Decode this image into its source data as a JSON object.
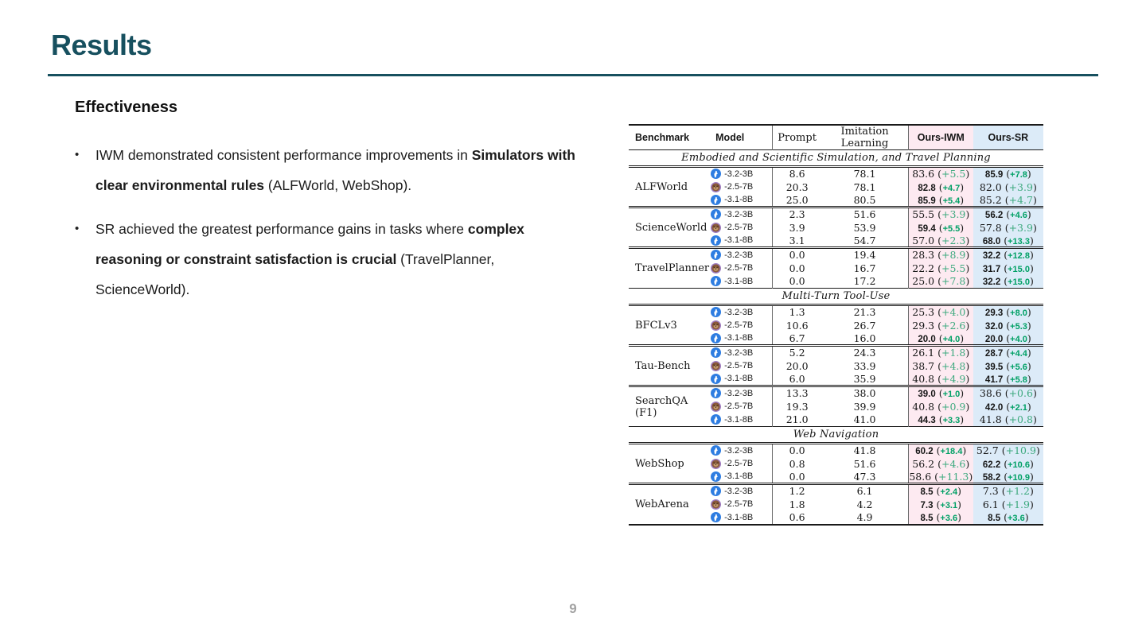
{
  "slide": {
    "title": "Results",
    "section_heading": "Effectiveness",
    "page_number": "9",
    "accent_color": "#17505f"
  },
  "bullets": [
    {
      "segments": [
        {
          "text": "IWM demonstrated consistent performance improvements in ",
          "bold": false
        },
        {
          "text": "Simulators with clear environmental rules",
          "bold": true
        },
        {
          "text": " (ALFWorld, WebShop).",
          "bold": false
        }
      ]
    },
    {
      "segments": [
        {
          "text": " SR achieved the greatest performance gains in tasks where ",
          "bold": false
        },
        {
          "text": "complex reasoning or constraint satisfaction is crucial",
          "bold": true
        },
        {
          "text": " (TravelPlanner, ScienceWorld).",
          "bold": false
        }
      ]
    }
  ],
  "table": {
    "headers": {
      "benchmark": "Benchmark",
      "model": "Model",
      "prompt": "Prompt",
      "imitation_learning": "Imitation Learning",
      "ours_iwm": "Ours-IWM",
      "ours_sr": "Ours-SR"
    },
    "colors": {
      "iwm_header_bg": "#fdeaf1",
      "sr_header_bg": "#dcebf8",
      "delta_green": "#3da97e",
      "delta_green_bold": "#00a065",
      "rule_color": "#1a1a1a"
    },
    "icon_legend": {
      "llama": "llama-icon",
      "qwen": "qwen-icon"
    },
    "sections": [
      {
        "title": "Embodied and Scientific Simulation, and Travel Planning",
        "groups": [
          {
            "benchmark": "ALFWorld",
            "rows": [
              {
                "icon": "llama",
                "model": "-3.2-3B",
                "prompt": "8.6",
                "il": "78.1",
                "iwm": {
                  "v": "83.6",
                  "d": "+5.5",
                  "bold": false
                },
                "sr": {
                  "v": "85.9",
                  "d": "+7.8",
                  "bold": true
                }
              },
              {
                "icon": "qwen",
                "model": "-2.5-7B",
                "prompt": "20.3",
                "il": "78.1",
                "iwm": {
                  "v": "82.8",
                  "d": "+4.7",
                  "bold": true
                },
                "sr": {
                  "v": "82.0",
                  "d": "+3.9",
                  "bold": false
                }
              },
              {
                "icon": "llama",
                "model": "-3.1-8B",
                "prompt": "25.0",
                "il": "80.5",
                "iwm": {
                  "v": "85.9",
                  "d": "+5.4",
                  "bold": true
                },
                "sr": {
                  "v": "85.2",
                  "d": "+4.7",
                  "bold": false
                }
              }
            ]
          },
          {
            "benchmark": "ScienceWorld",
            "rows": [
              {
                "icon": "llama",
                "model": "-3.2-3B",
                "prompt": "2.3",
                "il": "51.6",
                "iwm": {
                  "v": "55.5",
                  "d": "+3.9",
                  "bold": false
                },
                "sr": {
                  "v": "56.2",
                  "d": "+4.6",
                  "bold": true
                }
              },
              {
                "icon": "qwen",
                "model": "-2.5-7B",
                "prompt": "3.9",
                "il": "53.9",
                "iwm": {
                  "v": "59.4",
                  "d": "+5.5",
                  "bold": true
                },
                "sr": {
                  "v": "57.8",
                  "d": "+3.9",
                  "bold": false
                }
              },
              {
                "icon": "llama",
                "model": "-3.1-8B",
                "prompt": "3.1",
                "il": "54.7",
                "iwm": {
                  "v": "57.0",
                  "d": "+2.3",
                  "bold": false
                },
                "sr": {
                  "v": "68.0",
                  "d": "+13.3",
                  "bold": true
                }
              }
            ]
          },
          {
            "benchmark": "TravelPlanner",
            "rows": [
              {
                "icon": "llama",
                "model": "-3.2-3B",
                "prompt": "0.0",
                "il": "19.4",
                "iwm": {
                  "v": "28.3",
                  "d": "+8.9",
                  "bold": false
                },
                "sr": {
                  "v": "32.2",
                  "d": "+12.8",
                  "bold": true
                }
              },
              {
                "icon": "qwen",
                "model": "-2.5-7B",
                "prompt": "0.0",
                "il": "16.7",
                "iwm": {
                  "v": "22.2",
                  "d": "+5.5",
                  "bold": false
                },
                "sr": {
                  "v": "31.7",
                  "d": "+15.0",
                  "bold": true
                }
              },
              {
                "icon": "llama",
                "model": "-3.1-8B",
                "prompt": "0.0",
                "il": "17.2",
                "iwm": {
                  "v": "25.0",
                  "d": "+7.8",
                  "bold": false
                },
                "sr": {
                  "v": "32.2",
                  "d": "+15.0",
                  "bold": true
                }
              }
            ]
          }
        ]
      },
      {
        "title": "Multi-Turn Tool-Use",
        "groups": [
          {
            "benchmark": "BFCLv3",
            "rows": [
              {
                "icon": "llama",
                "model": "-3.2-3B",
                "prompt": "1.3",
                "il": "21.3",
                "iwm": {
                  "v": "25.3",
                  "d": "+4.0",
                  "bold": false
                },
                "sr": {
                  "v": "29.3",
                  "d": "+8.0",
                  "bold": true
                }
              },
              {
                "icon": "qwen",
                "model": "-2.5-7B",
                "prompt": "10.6",
                "il": "26.7",
                "iwm": {
                  "v": "29.3",
                  "d": "+2.6",
                  "bold": false
                },
                "sr": {
                  "v": "32.0",
                  "d": "+5.3",
                  "bold": true
                }
              },
              {
                "icon": "llama",
                "model": "-3.1-8B",
                "prompt": "6.7",
                "il": "16.0",
                "iwm": {
                  "v": "20.0",
                  "d": "+4.0",
                  "bold": true
                },
                "sr": {
                  "v": "20.0",
                  "d": "+4.0",
                  "bold": true
                }
              }
            ]
          },
          {
            "benchmark": "Tau-Bench",
            "rows": [
              {
                "icon": "llama",
                "model": "-3.2-3B",
                "prompt": "5.2",
                "il": "24.3",
                "iwm": {
                  "v": "26.1",
                  "d": "+1.8",
                  "bold": false
                },
                "sr": {
                  "v": "28.7",
                  "d": "+4.4",
                  "bold": true
                }
              },
              {
                "icon": "qwen",
                "model": "-2.5-7B",
                "prompt": "20.0",
                "il": "33.9",
                "iwm": {
                  "v": "38.7",
                  "d": "+4.8",
                  "bold": false
                },
                "sr": {
                  "v": "39.5",
                  "d": "+5.6",
                  "bold": true
                }
              },
              {
                "icon": "llama",
                "model": "-3.1-8B",
                "prompt": "6.0",
                "il": "35.9",
                "iwm": {
                  "v": "40.8",
                  "d": "+4.9",
                  "bold": false
                },
                "sr": {
                  "v": "41.7",
                  "d": "+5.8",
                  "bold": true
                }
              }
            ]
          },
          {
            "benchmark": "SearchQA (F1)",
            "rows": [
              {
                "icon": "llama",
                "model": "-3.2-3B",
                "prompt": "13.3",
                "il": "38.0",
                "iwm": {
                  "v": "39.0",
                  "d": "+1.0",
                  "bold": true
                },
                "sr": {
                  "v": "38.6",
                  "d": "+0.6",
                  "bold": false
                }
              },
              {
                "icon": "qwen",
                "model": "-2.5-7B",
                "prompt": "19.3",
                "il": "39.9",
                "iwm": {
                  "v": "40.8",
                  "d": "+0.9",
                  "bold": false
                },
                "sr": {
                  "v": "42.0",
                  "d": "+2.1",
                  "bold": true
                }
              },
              {
                "icon": "llama",
                "model": "-3.1-8B",
                "prompt": "21.0",
                "il": "41.0",
                "iwm": {
                  "v": "44.3",
                  "d": "+3.3",
                  "bold": true
                },
                "sr": {
                  "v": "41.8",
                  "d": "+0.8",
                  "bold": false
                }
              }
            ]
          }
        ]
      },
      {
        "title": "Web Navigation",
        "groups": [
          {
            "benchmark": "WebShop",
            "rows": [
              {
                "icon": "llama",
                "model": "-3.2-3B",
                "prompt": "0.0",
                "il": "41.8",
                "iwm": {
                  "v": "60.2",
                  "d": "+18.4",
                  "bold": true
                },
                "sr": {
                  "v": "52.7",
                  "d": "+10.9",
                  "bold": false
                }
              },
              {
                "icon": "qwen",
                "model": "-2.5-7B",
                "prompt": "0.8",
                "il": "51.6",
                "iwm": {
                  "v": "56.2",
                  "d": "+4.6",
                  "bold": false
                },
                "sr": {
                  "v": "62.2",
                  "d": "+10.6",
                  "bold": true
                }
              },
              {
                "icon": "llama",
                "model": "-3.1-8B",
                "prompt": "0.0",
                "il": "47.3",
                "iwm": {
                  "v": "58.6",
                  "d": "+11.3",
                  "bold": false
                },
                "sr": {
                  "v": "58.2",
                  "d": "+10.9",
                  "bold": true
                }
              }
            ]
          },
          {
            "benchmark": "WebArena",
            "rows": [
              {
                "icon": "llama",
                "model": "-3.2-3B",
                "prompt": "1.2",
                "il": "6.1",
                "iwm": {
                  "v": "8.5",
                  "d": "+2.4",
                  "bold": true
                },
                "sr": {
                  "v": "7.3",
                  "d": "+1.2",
                  "bold": false
                }
              },
              {
                "icon": "qwen",
                "model": "-2.5-7B",
                "prompt": "1.8",
                "il": "4.2",
                "iwm": {
                  "v": "7.3",
                  "d": "+3.1",
                  "bold": true
                },
                "sr": {
                  "v": "6.1",
                  "d": "+1.9",
                  "bold": false
                }
              },
              {
                "icon": "llama",
                "model": "-3.1-8B",
                "prompt": "0.6",
                "il": "4.9",
                "iwm": {
                  "v": "8.5",
                  "d": "+3.6",
                  "bold": true
                },
                "sr": {
                  "v": "8.5",
                  "d": "+3.6",
                  "bold": true
                }
              }
            ]
          }
        ]
      }
    ]
  }
}
